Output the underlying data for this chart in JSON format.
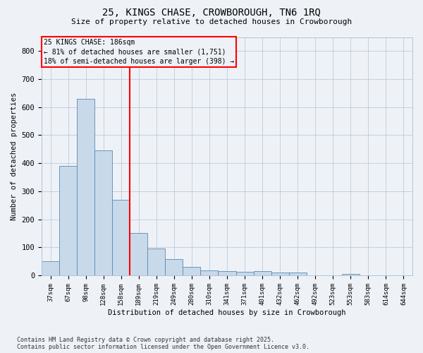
{
  "title": "25, KINGS CHASE, CROWBOROUGH, TN6 1RQ",
  "subtitle": "Size of property relative to detached houses in Crowborough",
  "xlabel": "Distribution of detached houses by size in Crowborough",
  "ylabel": "Number of detached properties",
  "bar_labels": [
    "37sqm",
    "67sqm",
    "98sqm",
    "128sqm",
    "158sqm",
    "189sqm",
    "219sqm",
    "249sqm",
    "280sqm",
    "310sqm",
    "341sqm",
    "371sqm",
    "401sqm",
    "432sqm",
    "462sqm",
    "492sqm",
    "523sqm",
    "553sqm",
    "583sqm",
    "614sqm",
    "644sqm"
  ],
  "bar_values": [
    50,
    390,
    630,
    445,
    270,
    150,
    95,
    58,
    30,
    18,
    15,
    12,
    15,
    10,
    10,
    0,
    0,
    5,
    0,
    0,
    0
  ],
  "bar_color": "#c8d9ea",
  "bar_edge_color": "#5a8ab0",
  "vline_index": 4.5,
  "vline_label": "25 KINGS CHASE: 186sqm",
  "annotation_line1": "← 81% of detached houses are smaller (1,751)",
  "annotation_line2": "18% of semi-detached houses are larger (398) →",
  "ylim": [
    0,
    850
  ],
  "yticks": [
    0,
    100,
    200,
    300,
    400,
    500,
    600,
    700,
    800
  ],
  "bg_color": "#eef2f7",
  "grid_color": "#b0c4d8",
  "footnote1": "Contains HM Land Registry data © Crown copyright and database right 2025.",
  "footnote2": "Contains public sector information licensed under the Open Government Licence v3.0."
}
